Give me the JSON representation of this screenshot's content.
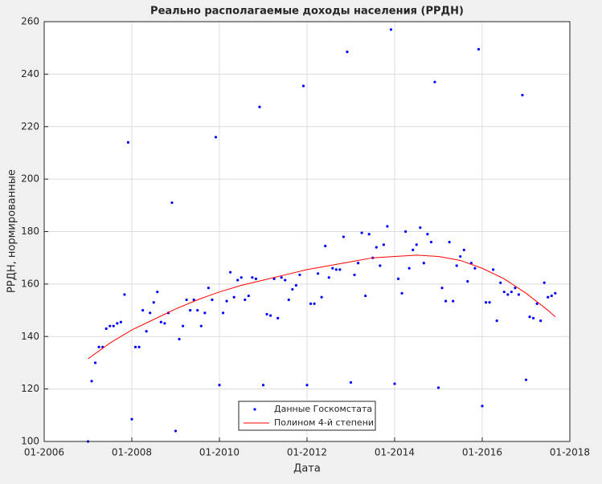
{
  "chart_data": {
    "type": "scatter",
    "title": "Реально располагаемые доходы населения (РРДН)",
    "x_label": "Дата",
    "y_label": "РРДН, нормированные",
    "xlim": [
      "01-2006",
      "01-2018"
    ],
    "xticks": [
      "01-2006",
      "01-2008",
      "01-2010",
      "01-2012",
      "01-2014",
      "01-2016",
      "01-2018"
    ],
    "ylim": [
      100,
      260
    ],
    "yticks": [
      100,
      120,
      140,
      160,
      180,
      200,
      220,
      240,
      260
    ],
    "grid": true,
    "legend": "south",
    "series": [
      {
        "name": "Данные Госкомстата",
        "color": "#0000ff",
        "type": "scatter",
        "x": [
          "01-2007",
          "02-2007",
          "03-2007",
          "04-2007",
          "05-2007",
          "06-2007",
          "07-2007",
          "08-2007",
          "09-2007",
          "10-2007",
          "11-2007",
          "12-2007",
          "01-2008",
          "02-2008",
          "03-2008",
          "04-2008",
          "05-2008",
          "06-2008",
          "07-2008",
          "08-2008",
          "09-2008",
          "10-2008",
          "11-2008",
          "12-2008",
          "01-2009",
          "02-2009",
          "03-2009",
          "04-2009",
          "05-2009",
          "06-2009",
          "07-2009",
          "08-2009",
          "09-2009",
          "10-2009",
          "11-2009",
          "12-2009",
          "01-2010",
          "02-2010",
          "03-2010",
          "04-2010",
          "05-2010",
          "06-2010",
          "07-2010",
          "08-2010",
          "09-2010",
          "10-2010",
          "11-2010",
          "12-2010",
          "01-2011",
          "02-2011",
          "03-2011",
          "04-2011",
          "05-2011",
          "06-2011",
          "07-2011",
          "08-2011",
          "09-2011",
          "10-2011",
          "11-2011",
          "12-2011",
          "01-2012",
          "02-2012",
          "03-2012",
          "04-2012",
          "05-2012",
          "06-2012",
          "07-2012",
          "08-2012",
          "09-2012",
          "10-2012",
          "11-2012",
          "12-2012",
          "01-2013",
          "02-2013",
          "03-2013",
          "04-2013",
          "05-2013",
          "06-2013",
          "07-2013",
          "08-2013",
          "09-2013",
          "10-2013",
          "11-2013",
          "12-2013",
          "01-2014",
          "02-2014",
          "03-2014",
          "04-2014",
          "05-2014",
          "06-2014",
          "07-2014",
          "08-2014",
          "09-2014",
          "10-2014",
          "11-2014",
          "12-2014",
          "01-2015",
          "02-2015",
          "03-2015",
          "04-2015",
          "05-2015",
          "06-2015",
          "07-2015",
          "08-2015",
          "09-2015",
          "10-2015",
          "11-2015",
          "12-2015",
          "01-2016",
          "02-2016",
          "03-2016",
          "04-2016",
          "05-2016",
          "06-2016",
          "07-2016",
          "08-2016",
          "09-2016",
          "10-2016",
          "11-2016",
          "12-2016",
          "01-2017",
          "02-2017",
          "03-2017",
          "04-2017",
          "05-2017",
          "06-2017",
          "07-2017",
          "08-2017",
          "09-2017"
        ],
        "values": [
          100,
          123,
          130,
          136,
          136,
          143,
          144,
          144,
          145,
          145.5,
          156,
          214,
          108.5,
          136,
          136,
          150,
          142,
          149,
          153,
          157,
          145.5,
          145,
          149,
          191,
          104,
          139,
          144,
          154,
          150,
          154,
          150,
          144,
          149,
          158.5,
          154,
          216,
          121.5,
          149,
          153.5,
          164.5,
          155,
          161.5,
          162.5,
          154,
          155.5,
          162.5,
          162,
          227.5,
          121.5,
          148.5,
          148,
          162,
          147,
          162.5,
          161.5,
          154,
          158,
          159.5,
          163.5,
          235.5,
          121.5,
          152.5,
          152.5,
          164,
          155,
          174.5,
          162.5,
          166,
          165.5,
          165.5,
          178,
          248.5,
          122.5,
          163.5,
          168,
          179.5,
          155.5,
          179,
          170,
          174,
          167,
          175,
          182,
          257,
          122,
          162,
          156.5,
          180,
          166,
          173,
          175,
          181.5,
          168,
          179,
          176,
          237,
          120.5,
          158.5,
          153.5,
          176,
          153.5,
          167,
          170.5,
          173,
          161,
          168,
          166,
          249.5,
          113.5,
          153,
          153,
          165.5,
          146,
          160.5,
          157,
          156,
          157,
          158.5,
          156,
          232,
          123.5,
          147.5,
          147,
          152.5,
          146,
          160.5,
          155,
          155.5,
          156.5
        ]
      },
      {
        "name": "Полином 4-й степени",
        "color": "#ff0000",
        "type": "line",
        "x": [
          "01-2007",
          "07-2007",
          "01-2008",
          "07-2008",
          "01-2009",
          "07-2009",
          "01-2010",
          "07-2010",
          "01-2011",
          "07-2011",
          "01-2012",
          "07-2012",
          "01-2013",
          "07-2013",
          "01-2014",
          "07-2014",
          "01-2015",
          "07-2015",
          "01-2016",
          "07-2016",
          "01-2017",
          "07-2017",
          "09-2017"
        ],
        "values": [
          131.5,
          137.5,
          142.5,
          146.5,
          150.5,
          154,
          157,
          159.5,
          161.5,
          163.5,
          165.5,
          167,
          168.5,
          170,
          170.5,
          171,
          170.5,
          169,
          166,
          162,
          156.5,
          150,
          147.5
        ]
      }
    ]
  }
}
